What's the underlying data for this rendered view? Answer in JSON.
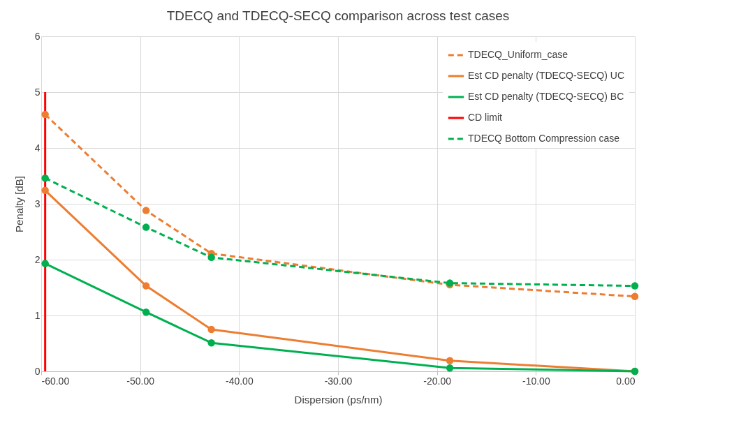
{
  "chart_data": {
    "type": "line",
    "title": "TDECQ and TDECQ-SECQ comparison across test cases",
    "xlabel": "Dispersion (ps/nm)",
    "ylabel": "Penalty [dB]",
    "x": [
      -59.6,
      -49.4,
      -42.8,
      -18.7,
      0
    ],
    "series": [
      {
        "name": "TDECQ_Uniform_case",
        "color": "#ed7d31",
        "line_style": "dashed",
        "marker": "circle",
        "values": [
          4.6,
          2.88,
          2.11,
          1.55,
          1.34
        ]
      },
      {
        "name": "Est CD penalty (TDECQ-SECQ) UC",
        "color": "#ed7d31",
        "line_style": "solid",
        "marker": "circle",
        "values": [
          3.24,
          1.53,
          0.75,
          0.19,
          0
        ]
      },
      {
        "name": "Est CD penalty (TDECQ-SECQ) BC",
        "color": "#00b050",
        "line_style": "solid",
        "marker": "circle",
        "values": [
          1.93,
          1.06,
          0.51,
          0.06,
          0
        ]
      },
      {
        "name": "CD limit",
        "color": "#ff0000",
        "line_style": "solid",
        "marker": "none",
        "x": [
          -59.6,
          -59.6
        ],
        "values": [
          0,
          5
        ]
      },
      {
        "name": "TDECQ Bottom Compression case",
        "color": "#00b050",
        "line_style": "dashed",
        "marker": "circle",
        "values": [
          3.46,
          2.58,
          2.04,
          1.58,
          1.53
        ]
      }
    ],
    "xlim": [
      -60,
      0
    ],
    "xticks": [
      {
        "value": -60,
        "label": "-60.00"
      },
      {
        "value": -50,
        "label": "-50.00"
      },
      {
        "value": -40,
        "label": "-40.00"
      },
      {
        "value": -30,
        "label": "-30.00"
      },
      {
        "value": -20,
        "label": "-20.00"
      },
      {
        "value": -10,
        "label": "-10.00"
      },
      {
        "value": 0,
        "label": "0.00"
      }
    ],
    "ylim": [
      0,
      6
    ],
    "yticks": [
      0,
      1,
      2,
      3,
      4,
      5,
      6
    ],
    "grid": true,
    "legend": "top right"
  }
}
